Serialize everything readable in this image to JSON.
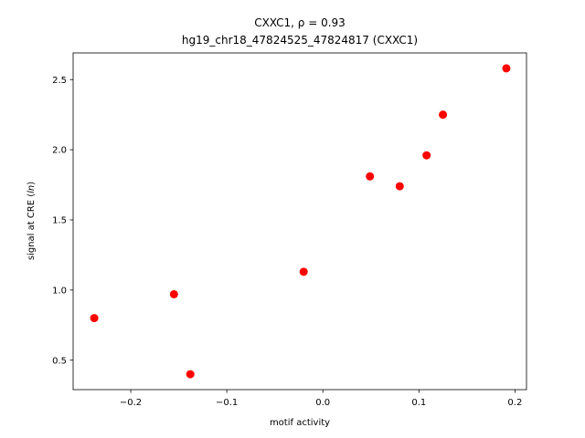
{
  "chart_data": {
    "type": "scatter",
    "title_line1": "CXXC1, ρ = 0.93",
    "title_line2": "hg19_chr18_47824525_47824817 (CXXC1)",
    "xlabel": "motif activity",
    "ylabel_main": "signal at CRE (",
    "ylabel_italic": "ln",
    "ylabel_end": ")",
    "xlim": [
      -0.26,
      0.212
    ],
    "ylim": [
      0.29,
      2.69
    ],
    "xticks": [
      {
        "value": -0.2,
        "label": "−0.2"
      },
      {
        "value": -0.1,
        "label": "−0.1"
      },
      {
        "value": 0.0,
        "label": "0.0"
      },
      {
        "value": 0.1,
        "label": "0.1"
      },
      {
        "value": 0.2,
        "label": "0.2"
      }
    ],
    "yticks": [
      {
        "value": 0.5,
        "label": "0.5"
      },
      {
        "value": 1.0,
        "label": "1.0"
      },
      {
        "value": 1.5,
        "label": "1.5"
      },
      {
        "value": 2.0,
        "label": "2.0"
      },
      {
        "value": 2.5,
        "label": "2.5"
      }
    ],
    "marker_color": "#ff0000",
    "points": [
      {
        "x": -0.238,
        "y": 0.8
      },
      {
        "x": -0.155,
        "y": 0.97
      },
      {
        "x": -0.138,
        "y": 0.4
      },
      {
        "x": -0.02,
        "y": 1.13
      },
      {
        "x": 0.049,
        "y": 1.81
      },
      {
        "x": 0.08,
        "y": 1.74
      },
      {
        "x": 0.108,
        "y": 1.96
      },
      {
        "x": 0.125,
        "y": 2.25
      },
      {
        "x": 0.191,
        "y": 2.58
      }
    ]
  }
}
